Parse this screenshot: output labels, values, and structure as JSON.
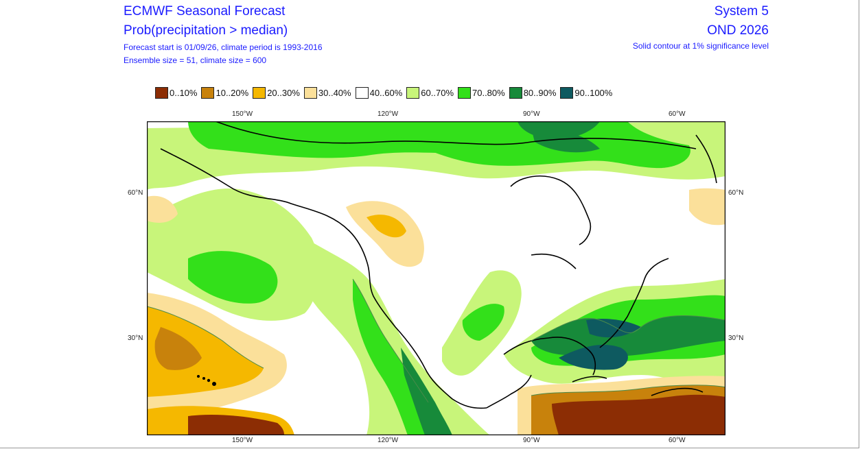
{
  "header": {
    "title": "ECMWF Seasonal Forecast",
    "subtitle": "Prob(precipitation > median)",
    "info_line1": "Forecast start is 01/09/26, climate period is 1993-2016",
    "info_line2": "Ensemble size = 51, climate size = 600",
    "system": "System 5",
    "season": "OND 2026",
    "note": "Solid contour at 1% significance level"
  },
  "legend": [
    {
      "label": "0..10%",
      "color": "#8c2d04"
    },
    {
      "label": "10..20%",
      "color": "#c8820c"
    },
    {
      "label": "20..30%",
      "color": "#f5b800"
    },
    {
      "label": "30..40%",
      "color": "#fbe09a"
    },
    {
      "label": "40..60%",
      "color": "#ffffff"
    },
    {
      "label": "60..70%",
      "color": "#c8f57a"
    },
    {
      "label": "70..80%",
      "color": "#33e01a"
    },
    {
      "label": "80..90%",
      "color": "#178a3a"
    },
    {
      "label": "90..100%",
      "color": "#0e5a60"
    }
  ],
  "axes": {
    "lon_top": [
      "150°W",
      "120°W",
      "90°W",
      "60°W"
    ],
    "lon_bottom": [
      "150°W",
      "120°W",
      "90°W",
      "60°W"
    ],
    "lat_left": [
      "60°N",
      "30°N"
    ],
    "lat_right": [
      "60°N",
      "30°N"
    ]
  }
}
